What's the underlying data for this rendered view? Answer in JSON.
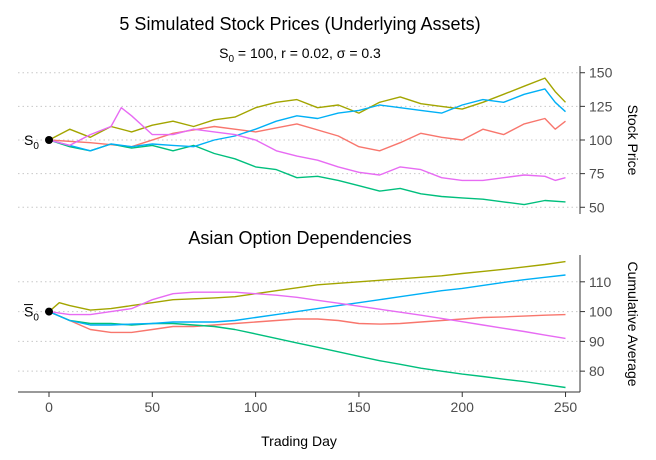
{
  "chart_data": [
    {
      "type": "line",
      "title": "5 Simulated Stock Prices (Underlying Assets)",
      "subtitle": "S₀ = 100,  r = 0.02,  σ = 0.3",
      "ylabel": "Stock Price",
      "ylim": [
        45,
        155
      ],
      "yticks": [
        50,
        75,
        100,
        125,
        150
      ],
      "start_label": "S",
      "start_label_sub": "0",
      "start_value": 100,
      "grid": true,
      "series": [
        {
          "color": "#F8766D",
          "x": [
            0,
            20,
            40,
            60,
            80,
            100,
            120,
            140,
            150,
            160,
            170,
            180,
            190,
            200,
            210,
            220,
            230,
            240,
            245,
            250
          ],
          "y": [
            100,
            98,
            95,
            105,
            110,
            106,
            112,
            103,
            95,
            92,
            98,
            105,
            102,
            100,
            108,
            104,
            112,
            116,
            108,
            114
          ]
        },
        {
          "color": "#A3A500",
          "x": [
            0,
            10,
            20,
            30,
            40,
            50,
            60,
            70,
            80,
            90,
            100,
            110,
            120,
            130,
            140,
            150,
            160,
            170,
            180,
            190,
            200,
            210,
            220,
            230,
            240,
            245,
            250
          ],
          "y": [
            100,
            108,
            102,
            110,
            106,
            111,
            114,
            110,
            115,
            117,
            124,
            128,
            130,
            124,
            126,
            120,
            128,
            132,
            127,
            125,
            123,
            128,
            134,
            140,
            146,
            136,
            128
          ]
        },
        {
          "color": "#00BF7D",
          "x": [
            0,
            10,
            20,
            30,
            40,
            50,
            60,
            70,
            80,
            90,
            100,
            110,
            120,
            130,
            140,
            150,
            160,
            170,
            180,
            190,
            200,
            210,
            220,
            230,
            240,
            250
          ],
          "y": [
            100,
            95,
            92,
            97,
            94,
            96,
            92,
            96,
            90,
            86,
            80,
            78,
            72,
            73,
            70,
            66,
            62,
            64,
            60,
            58,
            57,
            56,
            54,
            52,
            55,
            54
          ]
        },
        {
          "color": "#00B0F6",
          "x": [
            0,
            10,
            20,
            30,
            40,
            50,
            60,
            70,
            80,
            90,
            100,
            110,
            120,
            130,
            140,
            150,
            160,
            170,
            180,
            190,
            200,
            210,
            220,
            230,
            240,
            245,
            250
          ],
          "y": [
            100,
            96,
            92,
            97,
            95,
            97,
            96,
            95,
            100,
            103,
            108,
            114,
            118,
            116,
            120,
            122,
            126,
            124,
            122,
            120,
            126,
            130,
            128,
            134,
            138,
            128,
            121
          ]
        },
        {
          "color": "#E76BF3",
          "x": [
            0,
            10,
            20,
            30,
            35,
            40,
            50,
            60,
            70,
            80,
            90,
            100,
            110,
            120,
            130,
            140,
            150,
            160,
            170,
            180,
            190,
            200,
            210,
            220,
            230,
            240,
            245,
            250
          ],
          "y": [
            100,
            96,
            104,
            110,
            124,
            118,
            104,
            104,
            108,
            106,
            104,
            100,
            92,
            88,
            85,
            80,
            76,
            74,
            80,
            78,
            72,
            70,
            70,
            72,
            74,
            73,
            70,
            72
          ]
        }
      ]
    },
    {
      "type": "line",
      "title": "Asian Option Dependencies",
      "xlabel": "Trading Day",
      "ylabel": "Cumulative Average",
      "xlim": [
        -15,
        257
      ],
      "xticks": [
        0,
        50,
        100,
        150,
        200,
        250
      ],
      "ylim": [
        73,
        119
      ],
      "yticks": [
        80,
        90,
        100,
        110
      ],
      "start_label": "S",
      "start_label_sub": "0",
      "start_value": 100,
      "grid": true,
      "series": [
        {
          "color": "#F8766D",
          "x": [
            0,
            10,
            20,
            30,
            40,
            50,
            60,
            70,
            80,
            90,
            100,
            110,
            120,
            130,
            140,
            150,
            160,
            170,
            180,
            190,
            200,
            210,
            220,
            230,
            240,
            250
          ],
          "y": [
            100,
            97,
            94,
            93,
            93,
            94,
            95,
            95,
            95.5,
            96,
            96.5,
            97,
            97.5,
            97.5,
            97,
            96,
            95.8,
            96,
            96.5,
            97,
            97.5,
            98,
            98.2,
            98.5,
            98.8,
            99
          ]
        },
        {
          "color": "#A3A500",
          "x": [
            0,
            5,
            10,
            20,
            30,
            40,
            50,
            60,
            70,
            80,
            90,
            100,
            110,
            120,
            130,
            140,
            150,
            160,
            170,
            180,
            190,
            200,
            210,
            220,
            230,
            240,
            250
          ],
          "y": [
            100,
            103,
            102,
            100.5,
            101,
            102,
            103,
            104,
            104.3,
            104.6,
            105,
            106,
            107,
            108,
            109,
            109.5,
            110,
            110.5,
            111,
            111.5,
            112,
            112.8,
            113.5,
            114.2,
            115,
            115.8,
            116.8
          ]
        },
        {
          "color": "#00BF7D",
          "x": [
            0,
            10,
            20,
            30,
            40,
            50,
            60,
            70,
            80,
            90,
            100,
            110,
            120,
            130,
            140,
            150,
            160,
            170,
            180,
            190,
            200,
            210,
            220,
            230,
            240,
            250
          ],
          "y": [
            100,
            97,
            96,
            96,
            95.5,
            96,
            96,
            95.5,
            95,
            94,
            92.5,
            91,
            89.5,
            88,
            86.5,
            85,
            83.5,
            82.3,
            81,
            80,
            79,
            78.2,
            77.3,
            76.5,
            75.5,
            74.5
          ]
        },
        {
          "color": "#00B0F6",
          "x": [
            0,
            10,
            20,
            30,
            40,
            50,
            60,
            70,
            80,
            90,
            100,
            110,
            120,
            130,
            140,
            150,
            160,
            170,
            180,
            190,
            200,
            210,
            220,
            230,
            240,
            250
          ],
          "y": [
            100,
            97,
            95.5,
            95.5,
            95.8,
            96,
            96.5,
            96.5,
            96.5,
            97,
            98,
            99,
            100,
            101,
            102,
            103,
            104,
            105,
            106,
            107,
            107.8,
            108.8,
            109.8,
            110.7,
            111.5,
            112.3
          ]
        },
        {
          "color": "#E76BF3",
          "x": [
            0,
            10,
            20,
            30,
            40,
            50,
            60,
            70,
            80,
            90,
            100,
            110,
            120,
            130,
            140,
            150,
            160,
            170,
            180,
            190,
            200,
            210,
            220,
            230,
            240,
            250
          ],
          "y": [
            100,
            99,
            99,
            100,
            101,
            104,
            106,
            106.5,
            106.5,
            106.5,
            106,
            105.5,
            104.8,
            103.8,
            102.8,
            101.8,
            100.8,
            99.8,
            98.8,
            97.7,
            96.6,
            95.5,
            94.4,
            93.3,
            92.1,
            91
          ]
        }
      ]
    }
  ]
}
